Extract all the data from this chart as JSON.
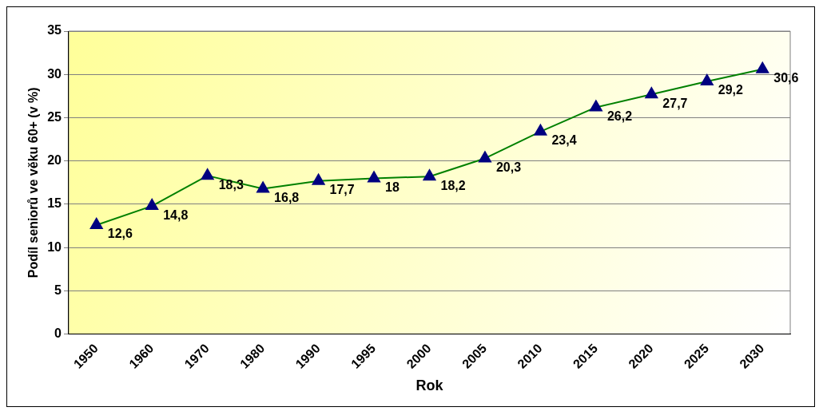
{
  "chart_data": {
    "type": "line",
    "xlabel": "Rok",
    "ylabel": "Podíl seniorů ve věku 60+ (v %)",
    "categories": [
      "1950",
      "1960",
      "1970",
      "1980",
      "1990",
      "1995",
      "2000",
      "2005",
      "2010",
      "2015",
      "2020",
      "2025",
      "2030"
    ],
    "series": [
      {
        "color": "#008000",
        "values": [
          12.6,
          14.8,
          18.3,
          16.8,
          17.7,
          18,
          18.2,
          20.3,
          23.4,
          26.2,
          27.7,
          29.2,
          30.6
        ],
        "value_labels": [
          "12,6",
          "14,8",
          "18,3",
          "16,8",
          "17,7",
          "18",
          "18,2",
          "20,3",
          "23,4",
          "26,2",
          "27,7",
          "29,2",
          "30,6"
        ]
      }
    ],
    "ylim": [
      0,
      35
    ],
    "yticks": [
      0,
      5,
      10,
      15,
      20,
      25,
      30,
      35
    ],
    "grid": "y",
    "legend": false,
    "marker": "triangle",
    "line_style": "solid"
  }
}
